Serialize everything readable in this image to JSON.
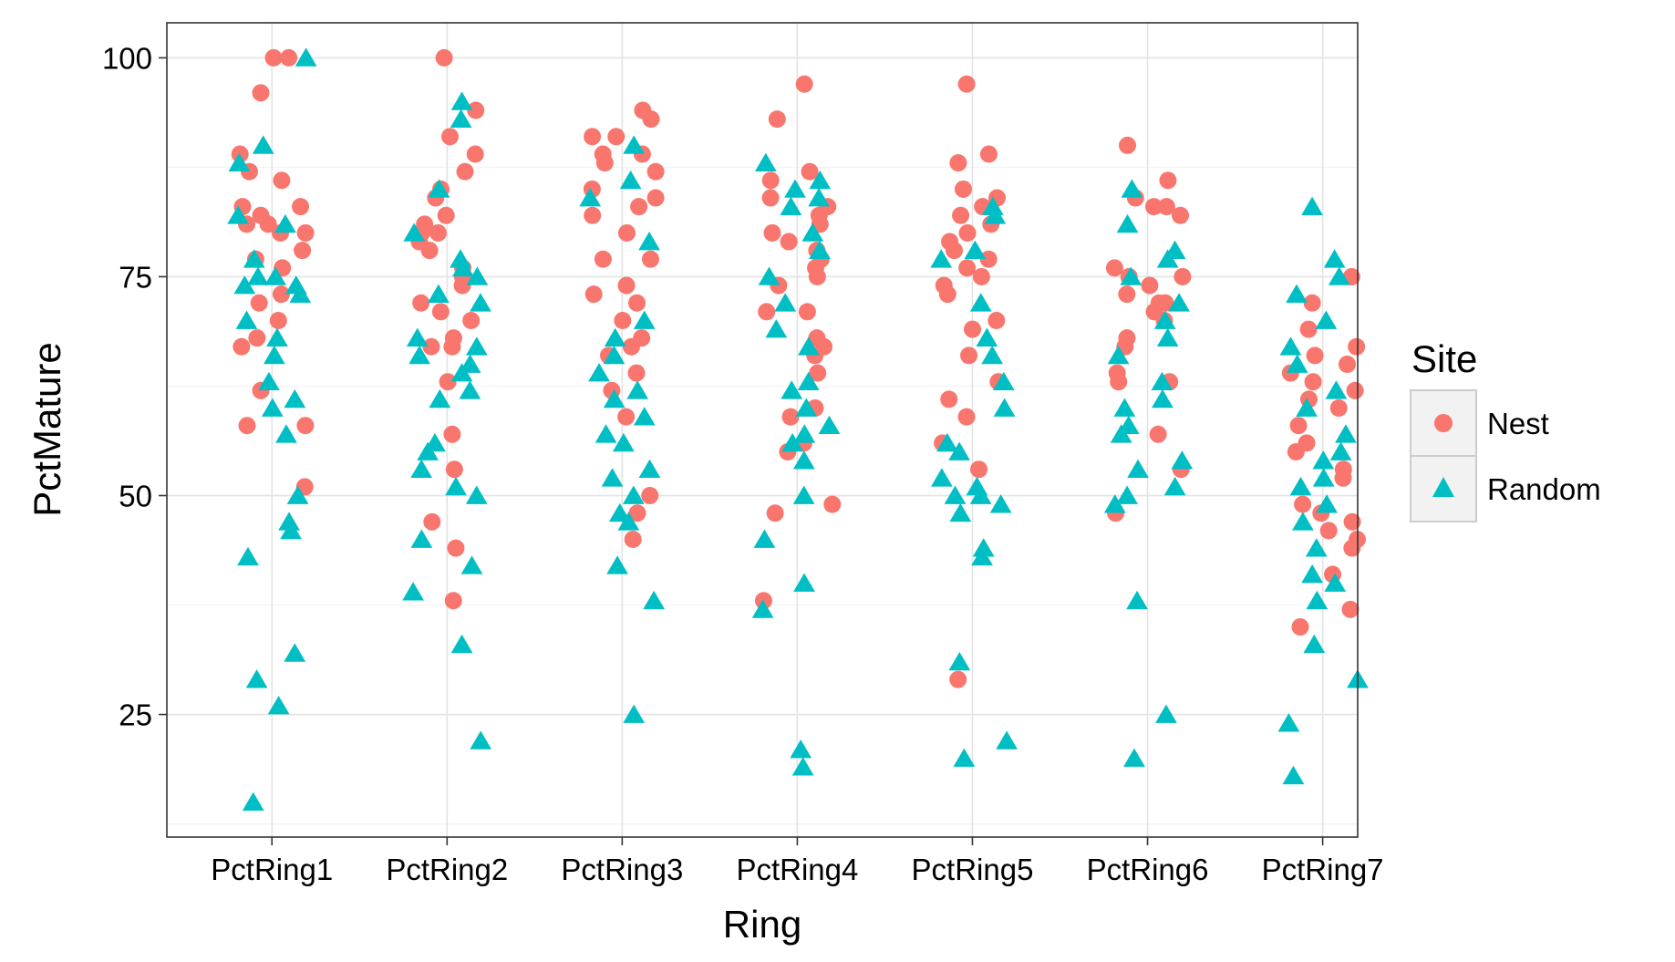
{
  "chart_data": {
    "type": "scatter",
    "title": "",
    "xlabel": "Ring",
    "ylabel": "PctMature",
    "categories": [
      "PctRing1",
      "PctRing2",
      "PctRing3",
      "PctRing4",
      "PctRing5",
      "PctRing6",
      "PctRing7"
    ],
    "ylim": [
      11,
      104
    ],
    "y_ticks": [
      25,
      50,
      75,
      100
    ],
    "y_tick_labels": [
      "25",
      "50",
      "75",
      "100"
    ],
    "grid": true,
    "legend": {
      "title": "Site",
      "position": "right"
    },
    "series": [
      {
        "name": "Nest",
        "marker": "circle",
        "color": "#F8766D",
        "points": {
          "PctRing1": [
            100,
            100,
            96,
            89,
            87,
            86,
            83,
            83,
            82,
            81,
            81,
            80,
            80,
            78,
            77,
            76,
            73,
            72,
            70,
            68,
            67,
            62,
            58,
            58,
            51
          ],
          "PctRing2": [
            100,
            94,
            91,
            89,
            87,
            85,
            84,
            82,
            81,
            80,
            80,
            79,
            78,
            76,
            75,
            74,
            72,
            71,
            70,
            68,
            67,
            67,
            63,
            57,
            53,
            47,
            44,
            38
          ],
          "PctRing3": [
            94,
            93,
            91,
            91,
            89,
            89,
            88,
            87,
            85,
            84,
            83,
            82,
            80,
            77,
            77,
            74,
            73,
            72,
            70,
            68,
            67,
            66,
            64,
            62,
            59,
            50,
            48,
            45
          ],
          "PctRing4": [
            97,
            93,
            87,
            86,
            84,
            83,
            82,
            81,
            80,
            79,
            78,
            77,
            76,
            75,
            74,
            71,
            71,
            68,
            67,
            66,
            64,
            60,
            59,
            56,
            55,
            49,
            48,
            38
          ],
          "PctRing5": [
            97,
            89,
            88,
            85,
            84,
            83,
            82,
            81,
            80,
            79,
            78,
            77,
            76,
            75,
            74,
            73,
            70,
            69,
            66,
            63,
            61,
            59,
            56,
            53,
            29
          ],
          "PctRing6": [
            90,
            86,
            84,
            83,
            83,
            82,
            76,
            75,
            75,
            74,
            73,
            72,
            72,
            71,
            70,
            68,
            67,
            64,
            63,
            63,
            57,
            53,
            48
          ],
          "PctRing7": [
            75,
            72,
            69,
            67,
            66,
            65,
            64,
            63,
            62,
            61,
            60,
            58,
            56,
            55,
            53,
            52,
            49,
            48,
            47,
            46,
            45,
            44,
            41,
            37,
            35
          ]
        }
      },
      {
        "name": "Random",
        "marker": "triangle",
        "color": "#00BFC4",
        "points": {
          "PctRing1": [
            100,
            90,
            88,
            82,
            81,
            77,
            75,
            75,
            74,
            74,
            73,
            70,
            68,
            66,
            63,
            61,
            60,
            57,
            50,
            47,
            46,
            43,
            32,
            29,
            26,
            15
          ],
          "PctRing2": [
            95,
            93,
            85,
            80,
            77,
            76,
            75,
            73,
            72,
            68,
            67,
            66,
            65,
            64,
            62,
            61,
            56,
            55,
            53,
            51,
            50,
            45,
            42,
            39,
            33,
            22
          ],
          "PctRing3": [
            90,
            86,
            84,
            79,
            70,
            68,
            66,
            64,
            62,
            61,
            59,
            57,
            56,
            53,
            52,
            50,
            48,
            47,
            42,
            38,
            25
          ],
          "PctRing4": [
            88,
            86,
            85,
            84,
            83,
            80,
            78,
            75,
            72,
            69,
            67,
            63,
            62,
            60,
            58,
            57,
            56,
            54,
            50,
            45,
            40,
            37,
            21,
            19
          ],
          "PctRing5": [
            83,
            82,
            78,
            77,
            72,
            68,
            66,
            63,
            60,
            56,
            55,
            52,
            51,
            50,
            50,
            49,
            48,
            44,
            43,
            31,
            22,
            20
          ],
          "PctRing6": [
            85,
            81,
            78,
            77,
            75,
            72,
            70,
            68,
            66,
            63,
            61,
            60,
            58,
            57,
            54,
            53,
            51,
            50,
            49,
            38,
            25,
            20
          ],
          "PctRing7": [
            83,
            77,
            75,
            73,
            70,
            67,
            65,
            62,
            60,
            57,
            55,
            54,
            52,
            51,
            49,
            47,
            44,
            41,
            40,
            38,
            33,
            29,
            24,
            18
          ]
        }
      }
    ]
  }
}
